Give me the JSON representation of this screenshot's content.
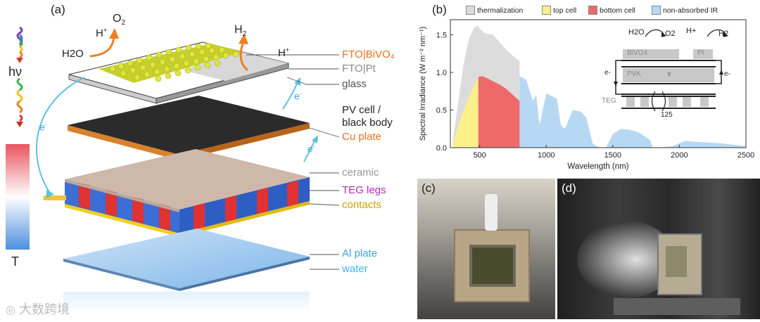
{
  "panel_a": {
    "letter": "(a)",
    "photon_label": "hν",
    "temp_label": "T",
    "h2o": "H2O",
    "h_plus_left": "H",
    "o2": "O",
    "o2_sub": "2",
    "h2": "H",
    "h2_sub": "2",
    "h_plus_right": "H",
    "electron": "e",
    "layer_labels": [
      {
        "text": "FTO|BiVO₄",
        "color": "#e8701f"
      },
      {
        "text": "FTO|Pt",
        "color": "#8a8a8a"
      },
      {
        "text": "glass",
        "color": "#555555"
      },
      {
        "text": "PV cell /",
        "color": "#222222"
      },
      {
        "text": "black body",
        "color": "#222222"
      },
      {
        "text": "Cu plate",
        "color": "#e8701f"
      },
      {
        "text": "ceramic",
        "color": "#999999"
      },
      {
        "text": "TEG legs",
        "color": "#b22cb8"
      },
      {
        "text": "contacts",
        "color": "#c9a400"
      },
      {
        "text": "Al plate",
        "color": "#3aa7d8"
      },
      {
        "text": "water",
        "color": "#3ab7e8"
      }
    ]
  },
  "panel_b": {
    "letter": "(b)",
    "legend": [
      {
        "name": "thermalization",
        "color": "#dcdcdc"
      },
      {
        "name": "top cell",
        "color": "#fbf08a"
      },
      {
        "name": "bottom cell",
        "color": "#ee6a6a"
      },
      {
        "name": "non-absorbed IR",
        "color": "#b7d8f3"
      }
    ],
    "inset": {
      "h2o": "H2O",
      "o2": "O2",
      "h_plus": "H+",
      "h2": "H2",
      "bivo4": "BiVO4",
      "pt": "Pt",
      "pvk": "PVK",
      "teg": "TEG",
      "e_left": "e-",
      "e_right": "e-",
      "count": "125"
    }
  },
  "chart_data": {
    "type": "area",
    "title": "",
    "xlabel": "Wavelength (nm)",
    "ylabel": "Spectral Irradiance (W m⁻² nm⁻¹)",
    "xlim": [
      280,
      2500
    ],
    "ylim": [
      0,
      1.7
    ],
    "xticks": [
      500,
      1000,
      1500,
      2000,
      2500
    ],
    "yticks": [
      0.0,
      0.5,
      1.0,
      1.5
    ],
    "series": [
      {
        "name": "thermalization",
        "x": [
          300,
          340,
          380,
          420,
          460,
          490,
          500,
          540,
          600,
          650,
          700,
          750,
          800
        ],
        "values": [
          0.1,
          0.62,
          1.12,
          1.45,
          1.6,
          1.62,
          1.58,
          1.52,
          1.5,
          1.4,
          1.3,
          1.22,
          1.15
        ]
      },
      {
        "name": "top cell",
        "x": [
          300,
          340,
          380,
          420,
          460,
          490
        ],
        "values": [
          0.05,
          0.3,
          0.5,
          0.68,
          0.84,
          0.94
        ]
      },
      {
        "name": "bottom cell",
        "x": [
          490,
          520,
          560,
          600,
          650,
          700,
          750,
          800
        ],
        "values": [
          0.94,
          0.95,
          0.92,
          0.88,
          0.84,
          0.78,
          0.7,
          0.62
        ]
      },
      {
        "name": "non-absorbed IR",
        "x": [
          800,
          850,
          900,
          925,
          950,
          1000,
          1080,
          1110,
          1140,
          1200,
          1260,
          1300,
          1350,
          1400,
          1450,
          1500,
          1560,
          1620,
          1700,
          1780,
          1800,
          1850,
          1950,
          2000,
          2050,
          2100,
          2200,
          2300,
          2400,
          2500
        ],
        "values": [
          0.95,
          0.9,
          0.62,
          0.7,
          0.3,
          0.72,
          0.65,
          0.3,
          0.25,
          0.5,
          0.48,
          0.4,
          0.05,
          0.0,
          0.0,
          0.18,
          0.25,
          0.24,
          0.2,
          0.1,
          0.0,
          0.0,
          0.02,
          0.06,
          0.09,
          0.08,
          0.07,
          0.06,
          0.04,
          0.02
        ]
      }
    ]
  },
  "photo_c": {
    "letter": "(c)"
  },
  "photo_d": {
    "letter": "(d)"
  },
  "watermark": {
    "text": "大数跨境"
  }
}
